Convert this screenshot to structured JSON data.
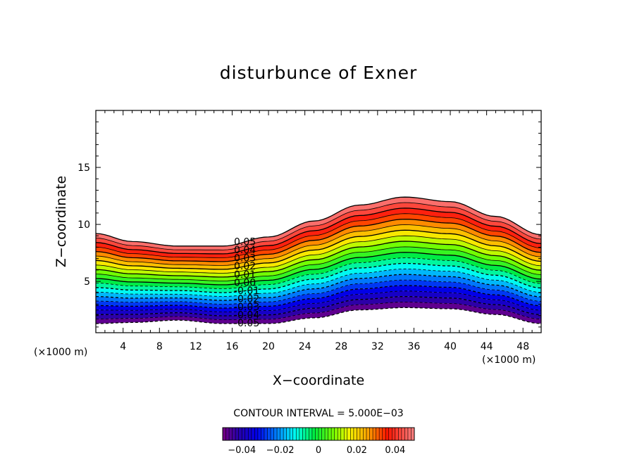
{
  "chart_data": {
    "type": "contour",
    "title": "disturbunce of Exner",
    "xlabel": "X−coordinate",
    "ylabel": "Z−coordinate",
    "x_unit_label": "(×1000 m)",
    "y_unit_label": "(×1000 m)",
    "xlim": [
      1,
      50
    ],
    "ylim": [
      0.5,
      20
    ],
    "x_ticks": [
      4,
      8,
      12,
      16,
      20,
      24,
      28,
      32,
      36,
      40,
      44,
      48
    ],
    "y_ticks": [
      5,
      10,
      15
    ],
    "contour_interval_text": "CONTOUR INTERVAL = 5.000E−03",
    "contour_interval": 0.005,
    "levels": [
      -0.05,
      -0.045,
      -0.04,
      -0.035,
      -0.03,
      -0.025,
      -0.02,
      -0.015,
      -0.01,
      -0.005,
      0,
      0.005,
      0.01,
      0.015,
      0.02,
      0.025,
      0.03,
      0.035,
      0.04,
      0.045,
      0.05
    ],
    "level_labels": [
      {
        "level": 0.05,
        "text": "0.05"
      },
      {
        "level": 0.04,
        "text": "0.04"
      },
      {
        "level": 0.03,
        "text": "0.03"
      },
      {
        "level": 0.02,
        "text": "0.02"
      },
      {
        "level": 0.01,
        "text": "0.01"
      },
      {
        "level": 0.0,
        "text": "0.00"
      },
      {
        "level": -0.01,
        "text": "-0.01"
      },
      {
        "level": -0.02,
        "text": "-0.02"
      },
      {
        "level": -0.03,
        "text": "-0.03"
      },
      {
        "level": -0.04,
        "text": "-0.04"
      },
      {
        "level": -0.05,
        "text": "-0.05"
      }
    ],
    "field_top_height": [
      [
        1,
        9.2
      ],
      [
        5,
        8.5
      ],
      [
        10,
        8.1
      ],
      [
        15,
        8.1
      ],
      [
        20,
        8.9
      ],
      [
        25,
        10.3
      ],
      [
        30,
        11.7
      ],
      [
        35,
        12.4
      ],
      [
        40,
        12.0
      ],
      [
        45,
        10.7
      ],
      [
        50,
        9.1
      ]
    ],
    "field_bottom_height": [
      [
        1,
        1.3
      ],
      [
        5,
        1.4
      ],
      [
        10,
        1.6
      ],
      [
        15,
        1.3
      ],
      [
        20,
        1.3
      ],
      [
        25,
        1.8
      ],
      [
        30,
        2.5
      ],
      [
        35,
        2.7
      ],
      [
        40,
        2.6
      ],
      [
        45,
        2.1
      ],
      [
        50,
        1.3
      ]
    ],
    "colorbar": {
      "range": [
        -0.05,
        0.05
      ],
      "ticks": [
        {
          "value": -0.04,
          "text": "−0.04"
        },
        {
          "value": -0.02,
          "text": "−0.02"
        },
        {
          "value": 0,
          "text": "0"
        },
        {
          "value": 0.02,
          "text": "0.02"
        },
        {
          "value": 0.04,
          "text": "0.04"
        }
      ]
    },
    "negative_contours": "dashed",
    "grid": false
  }
}
